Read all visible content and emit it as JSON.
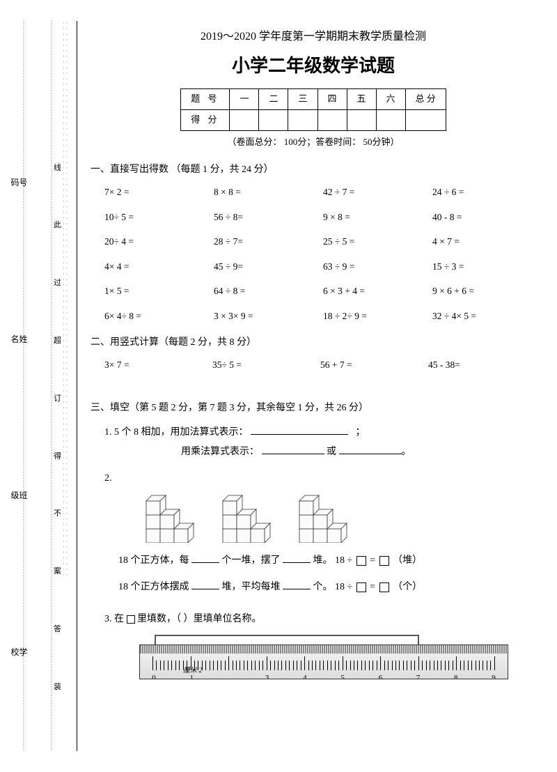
{
  "header": {
    "subtitle": "2019～2020 学年度第一学期期末教学质量检测",
    "title": "小学二年级数学试题"
  },
  "score_table": {
    "row_label_1": "题 号",
    "cols": [
      "一",
      "二",
      "三",
      "四",
      "五",
      "六",
      "总 分"
    ],
    "row_label_2": "得 分"
  },
  "paper_info": "（卷面总分： 100分；答卷时间： 50分钟）",
  "section1": {
    "title": "一、直接写出得数 （每题 1 分，共 24 分）",
    "items": [
      "7× 2 =",
      "8     × 8 =",
      "42 ÷ 7 =",
      "24     ÷ 6 =",
      "10÷ 5 =",
      "56     ÷ 8=",
      "9     × 8 =",
      "40       - 8 =",
      "20÷ 4 =",
      "28     ÷ 7=",
      "25     ÷ 5 =",
      "4       × 7 =",
      "4× 4 =",
      "45     ÷ 9=",
      "63     ÷ 9 =",
      "15       ÷ 3 =",
      "1× 5 =",
      "64     ÷ 8 =",
      "6     × 3 + 4 =",
      "9     × 6 + 6 =",
      "6× 4÷ 8 =",
      "3    × 3× 9 =",
      "18    ÷ 2÷ 9 =",
      "32  ÷ 4× 5 ="
    ]
  },
  "section2": {
    "title": "二、用竖式计算（每题 2 分，共 8 分）",
    "items": [
      "3× 7 =",
      "35÷ 5 =",
      "56       + 7 =",
      "45       - 38="
    ]
  },
  "section3": {
    "title": "三、填空（第 5 题 2 分，第 7 题 3 分，其余每空 1 分，共 26 分）",
    "q1_a": "1. 5  个 8 相加，用加法算式表示：",
    "q1_b": "用乘法算式表示：",
    "q1_or": "或",
    "q2_num": "2.",
    "q2_line1a": "18 个正方体，每 ",
    "q2_line1b": "个一堆，摆了 ",
    "q2_line1c": "堆。  18 ÷ ",
    "q2_line1d": " =",
    "q2_line1e": "   （堆）",
    "q2_line2a": "18 个正方体摆成 ",
    "q2_line2b": "堆，平均每堆 ",
    "q2_line2c": "个。  18 ÷ ",
    "q2_line2d": " =",
    "q2_line2e": "   （个）",
    "q3_a": "3.   在",
    "q3_b": " 里填数，（     ）里填单位名称。",
    "ruler_nums": [
      "0",
      "1",
      "",
      "3",
      "4",
      "5",
      "6",
      "7",
      "8",
      "9"
    ],
    "cm_label": "厘米 2"
  },
  "side": {
    "labels_outer": [
      "码号",
      "名姓",
      "级班",
      "校学"
    ],
    "labels_inner": [
      "线",
      "此",
      "过",
      "超",
      "得",
      "不",
      "案",
      "答"
    ],
    "labels_mid": [
      "线",
      "订",
      "装"
    ]
  },
  "colors": {
    "text": "#000000",
    "background": "#ffffff",
    "ruler_grad": [
      "#f5f5f5",
      "#dddddd"
    ],
    "side_dots": "#666666"
  }
}
